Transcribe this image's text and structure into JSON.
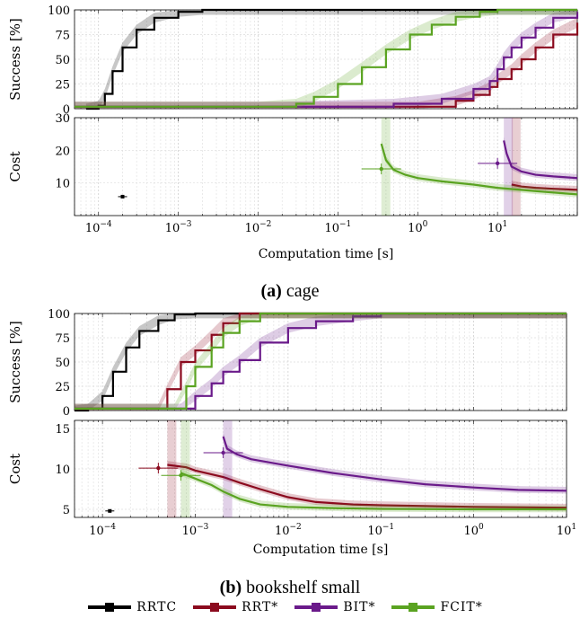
{
  "series_styles": [
    {
      "name": "RRTC",
      "color": "#000000"
    },
    {
      "name": "RRT*",
      "color": "#8b0a1e"
    },
    {
      "name": "BIT*",
      "color": "#6a1a8a"
    },
    {
      "name": "FCIT*",
      "color": "#5aa321"
    }
  ],
  "legend": [
    "RRTC",
    "RRT*",
    "BIT*",
    "FCIT*"
  ],
  "chart_data": [
    {
      "type": "line",
      "panel": "cage",
      "caption_label": "(a)",
      "caption_text": "cage",
      "xlabel": "Computation time [s]",
      "xscale": "log",
      "xlim": [
        5e-05,
        100
      ],
      "xticks": [
        "10^{-4}",
        "10^{-3}",
        "10^{-2}",
        "10^{-1}",
        "10^{0}",
        "10^{1}"
      ],
      "success": {
        "ylabel": "Success [%]",
        "ylim": [
          0,
          100
        ],
        "yticks": [
          0,
          25,
          50,
          75,
          100
        ],
        "series": [
          {
            "name": "RRTC",
            "x": [
              7e-05,
              0.0001,
              0.00012,
              0.00015,
              0.0002,
              0.0003,
              0.0005,
              0.001,
              0.002,
              100
            ],
            "y": [
              0,
              3,
              15,
              38,
              62,
              80,
              92,
              98,
              100,
              100
            ]
          },
          {
            "name": "RRT*",
            "x": [
              5e-05,
              1,
              3,
              5,
              8,
              10,
              15,
              20,
              30,
              50,
              100
            ],
            "y": [
              2,
              2,
              8,
              14,
              22,
              30,
              40,
              50,
              62,
              75,
              87
            ]
          },
          {
            "name": "BIT*",
            "x": [
              5e-05,
              0.02,
              0.5,
              2,
              5,
              8,
              10,
              12,
              15,
              20,
              30,
              50,
              100
            ],
            "y": [
              2,
              2,
              5,
              10,
              20,
              28,
              40,
              52,
              62,
              72,
              82,
              92,
              98
            ]
          },
          {
            "name": "FCIT*",
            "x": [
              5e-05,
              0.01,
              0.03,
              0.05,
              0.1,
              0.2,
              0.4,
              0.8,
              1.5,
              3,
              6,
              10,
              100
            ],
            "y": [
              2,
              2,
              5,
              12,
              25,
              42,
              60,
              75,
              85,
              93,
              98,
              100,
              100
            ]
          }
        ]
      },
      "cost": {
        "ylabel": "Cost",
        "ylim": [
          0,
          30
        ],
        "yticks": [
          10,
          20,
          30
        ],
        "series": [
          {
            "name": "RRTC",
            "x": [
              0.0002
            ],
            "y": [
              5.8
            ],
            "point": true
          },
          {
            "name": "RRT*",
            "x": [
              15,
              20,
              30,
              50,
              100
            ],
            "y": [
              9.5,
              8.9,
              8.5,
              8.2,
              7.9
            ]
          },
          {
            "name": "BIT*",
            "x": [
              12,
              13,
              15,
              20,
              30,
              50,
              100
            ],
            "y": [
              23,
              19,
              15,
              13.5,
              12.5,
              12,
              11.5
            ]
          },
          {
            "name": "FCIT*",
            "x": [
              0.35,
              0.4,
              0.5,
              0.7,
              1,
              2,
              5,
              10,
              30,
              100
            ],
            "y": [
              22,
              17,
              14,
              12.5,
              11.5,
              10.5,
              9.5,
              8.5,
              7.5,
              6.5
            ]
          }
        ],
        "first_solution": [
          {
            "name": "FCIT*",
            "x": 0.35,
            "y": 14.3
          },
          {
            "name": "BIT*",
            "x": 10,
            "y": 16
          }
        ]
      }
    },
    {
      "type": "line",
      "panel": "bookshelf small",
      "caption_label": "(b)",
      "caption_text": "bookshelf small",
      "xlabel": "Computation time [s]",
      "xscale": "log",
      "xlim": [
        5e-05,
        10
      ],
      "xticks": [
        "10^{-4}",
        "10^{-3}",
        "10^{-2}",
        "10^{-1}",
        "10^{0}",
        "10^{1}"
      ],
      "success": {
        "ylabel": "Success [%]",
        "ylim": [
          0,
          100
        ],
        "yticks": [
          0,
          25,
          50,
          75,
          100
        ],
        "series": [
          {
            "name": "RRTC",
            "x": [
              5e-05,
              7e-05,
              0.0001,
              0.00013,
              0.00018,
              0.00025,
              0.0004,
              0.0006,
              0.001,
              10
            ],
            "y": [
              0,
              2,
              15,
              40,
              65,
              82,
              93,
              99,
              100,
              100
            ]
          },
          {
            "name": "RRT*",
            "x": [
              5e-05,
              0.0004,
              0.0005,
              0.0007,
              0.001,
              0.0015,
              0.002,
              0.003,
              10
            ],
            "y": [
              2,
              2,
              22,
              50,
              62,
              78,
              90,
              100,
              100
            ]
          },
          {
            "name": "BIT*",
            "x": [
              5e-05,
              0.0007,
              0.001,
              0.0015,
              0.002,
              0.003,
              0.005,
              0.01,
              0.02,
              0.05,
              0.1,
              10
            ],
            "y": [
              2,
              2,
              15,
              28,
              40,
              52,
              70,
              85,
              92,
              97,
              100,
              100
            ]
          },
          {
            "name": "FCIT*",
            "x": [
              5e-05,
              0.0006,
              0.0008,
              0.001,
              0.0015,
              0.002,
              0.003,
              0.005,
              10
            ],
            "y": [
              2,
              2,
              25,
              45,
              65,
              80,
              92,
              100,
              100
            ]
          }
        ]
      },
      "cost": {
        "ylabel": "Cost",
        "ylim": [
          4,
          16
        ],
        "yticks": [
          5,
          10,
          15
        ],
        "series": [
          {
            "name": "RRTC",
            "x": [
              0.00012
            ],
            "y": [
              4.8
            ],
            "point": true
          },
          {
            "name": "RRT*",
            "x": [
              0.0005,
              0.0008,
              0.001,
              0.002,
              0.003,
              0.005,
              0.01,
              0.02,
              0.05,
              0.1,
              1,
              10
            ],
            "y": [
              10.5,
              10.2,
              9.8,
              9,
              8.3,
              7.5,
              6.5,
              5.9,
              5.6,
              5.5,
              5.3,
              5.2
            ]
          },
          {
            "name": "BIT*",
            "x": [
              0.002,
              0.0022,
              0.0028,
              0.004,
              0.01,
              0.03,
              0.1,
              0.3,
              1,
              3,
              10
            ],
            "y": [
              14,
              12.5,
              11.8,
              11.2,
              10.4,
              9.5,
              8.7,
              8.1,
              7.7,
              7.4,
              7.3
            ]
          },
          {
            "name": "FCIT*",
            "x": [
              0.0007,
              0.001,
              0.0015,
              0.002,
              0.003,
              0.005,
              0.01,
              0.03,
              0.1,
              1,
              10
            ],
            "y": [
              9.5,
              8.8,
              8,
              7.2,
              6.3,
              5.6,
              5.3,
              5.15,
              5.05,
              5.0,
              5.0
            ]
          }
        ],
        "first_solution": [
          {
            "name": "RRT*",
            "x": 0.0004,
            "y": 10.1
          },
          {
            "name": "FCIT*",
            "x": 0.0007,
            "y": 9.2
          },
          {
            "name": "BIT*",
            "x": 0.002,
            "y": 12
          }
        ]
      }
    }
  ]
}
